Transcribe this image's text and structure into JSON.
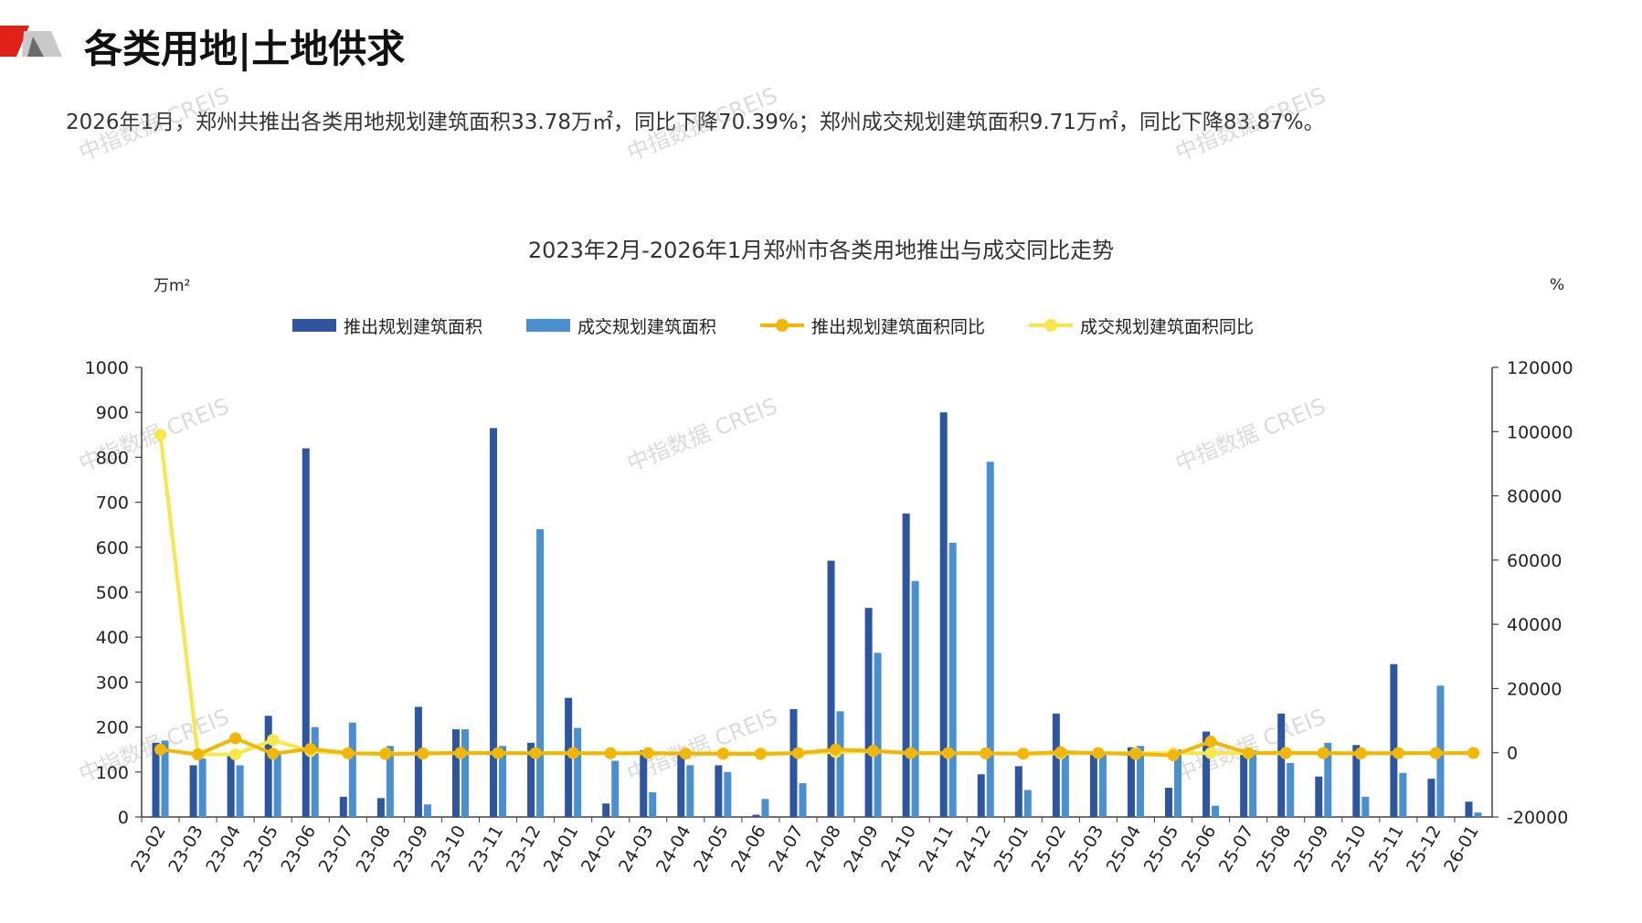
{
  "header": {
    "title": "各类用地|土地供求",
    "summary": "2026年1月，郑州共推出各类用地规划建筑面积33.78万㎡，同比下降70.39%；郑州成交规划建筑面积9.71万㎡，同比下降83.87%。"
  },
  "watermark": "中指数据 CREIS",
  "colors": {
    "supply_bar": "#2e55a0",
    "deal_bar": "#4a8fd0",
    "supply_yoy_line": "#f2b705",
    "deal_yoy_line": "#f7e84a",
    "axis": "#444444",
    "brand_red": "#e0211a"
  },
  "chart_data": {
    "type": "bar",
    "title": "2023年2月-2026年1月郑州市各类用地推出与成交同比走势",
    "ylabel": "万m²",
    "y2label": "%",
    "ylim": [
      0,
      1000
    ],
    "y2lim": [
      -20000,
      120000
    ],
    "yticks": [
      "0",
      "100",
      "200",
      "300",
      "400",
      "500",
      "600",
      "700",
      "800",
      "900",
      "1000"
    ],
    "y2ticks": [
      "-20000",
      "0",
      "20000",
      "40000",
      "60000",
      "80000",
      "100000",
      "120000"
    ],
    "legend_position": "top",
    "grid": false,
    "categories": [
      "23-02",
      "23-03",
      "23-04",
      "23-05",
      "23-06",
      "23-07",
      "23-08",
      "23-09",
      "23-10",
      "23-11",
      "23-12",
      "24-01",
      "24-02",
      "24-03",
      "24-04",
      "24-05",
      "24-06",
      "24-07",
      "24-08",
      "24-09",
      "24-10",
      "24-11",
      "24-12",
      "25-01",
      "25-02",
      "25-03",
      "25-04",
      "25-05",
      "25-06",
      "25-07",
      "25-08",
      "25-09",
      "25-10",
      "25-11",
      "25-12",
      "26-01"
    ],
    "series": [
      {
        "name": "推出规划建筑面积",
        "type": "bar",
        "axis": "left",
        "values": [
          165,
          115,
          140,
          225,
          820,
          45,
          42,
          245,
          195,
          865,
          165,
          265,
          30,
          148,
          145,
          115,
          5,
          240,
          570,
          465,
          675,
          900,
          95,
          113,
          230,
          145,
          155,
          65,
          190,
          150,
          230,
          90,
          160,
          340,
          85,
          34
        ]
      },
      {
        "name": "成交规划建筑面积",
        "type": "bar",
        "axis": "left",
        "values": [
          170,
          130,
          115,
          140,
          200,
          210,
          158,
          28,
          195,
          158,
          640,
          198,
          125,
          55,
          115,
          100,
          40,
          75,
          235,
          365,
          525,
          610,
          790,
          60,
          140,
          145,
          158,
          150,
          25,
          148,
          120,
          165,
          45,
          98,
          292,
          10
        ]
      },
      {
        "name": "推出规划建筑面积同比",
        "type": "line",
        "axis": "right",
        "values": [
          1000,
          -500,
          4500,
          -300,
          1200,
          -100,
          -400,
          -200,
          0,
          -100,
          -100,
          -100,
          -200,
          -100,
          -300,
          -300,
          -400,
          -100,
          1000,
          600,
          -100,
          -100,
          -200,
          -300,
          200,
          -100,
          -400,
          -800,
          3500,
          -100,
          0,
          -100,
          -100,
          -100,
          -100,
          -70
        ]
      },
      {
        "name": "成交规划建筑面积同比",
        "type": "line",
        "axis": "right",
        "values": [
          99000,
          -500,
          -500,
          4000,
          500,
          -200,
          -200,
          -300,
          -100,
          -100,
          -100,
          -100,
          -100,
          -100,
          -200,
          -200,
          -200,
          -100,
          200,
          500,
          -100,
          -100,
          -100,
          -300,
          -200,
          -100,
          -100,
          -200,
          -100,
          -100,
          -200,
          -100,
          -300,
          -100,
          -100,
          -84
        ]
      }
    ]
  }
}
